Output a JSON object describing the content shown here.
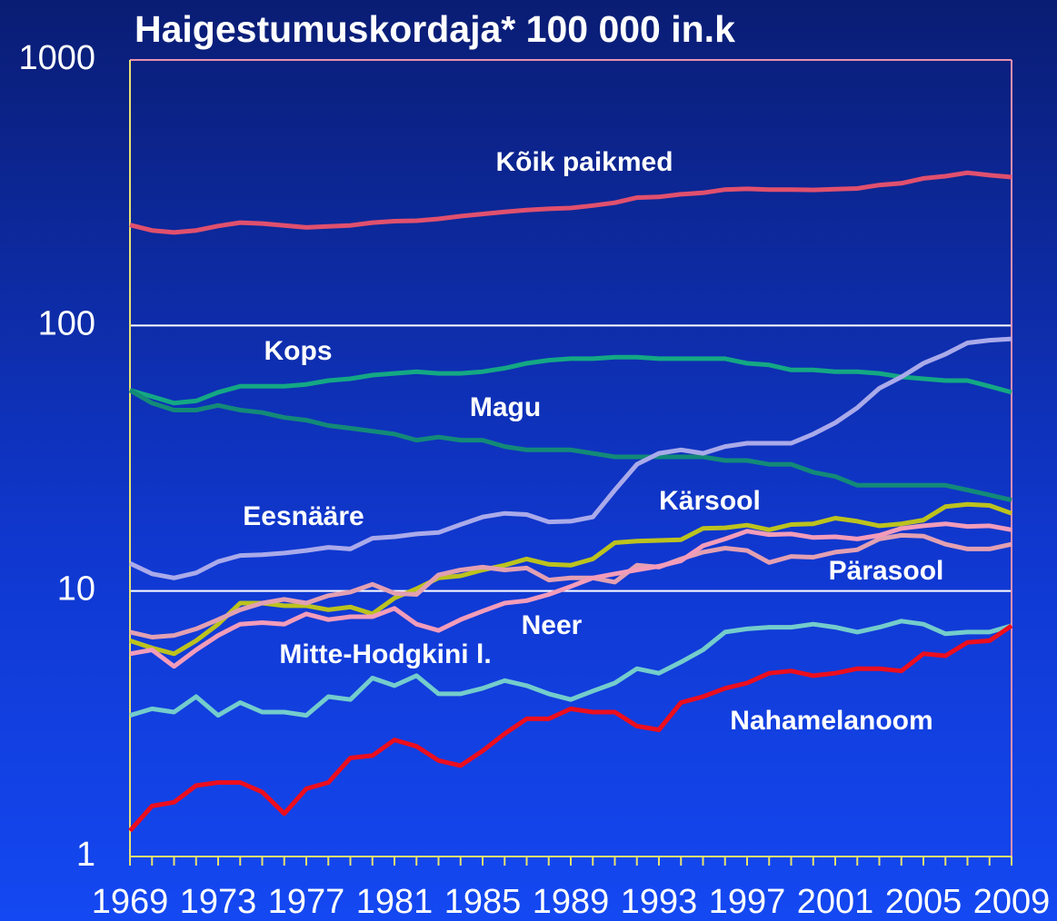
{
  "chart_data": {
    "type": "line",
    "title": "Haigestumuskordaja* 100 000 in.k",
    "log_scale": true,
    "grid": true,
    "x": [
      1969,
      1970,
      1971,
      1972,
      1973,
      1974,
      1975,
      1976,
      1977,
      1978,
      1979,
      1980,
      1981,
      1982,
      1983,
      1984,
      1985,
      1986,
      1987,
      1988,
      1989,
      1990,
      1991,
      1992,
      1993,
      1994,
      1995,
      1996,
      1997,
      1998,
      1999,
      2000,
      2001,
      2002,
      2003,
      2004,
      2005,
      2006,
      2007,
      2008,
      2009
    ],
    "xlim": [
      1969,
      2009
    ],
    "xticks": [
      1969,
      1973,
      1977,
      1981,
      1985,
      1989,
      1993,
      1997,
      2001,
      2005,
      2009
    ],
    "ylim": [
      1,
      1000
    ],
    "yticks": [
      1,
      10,
      100,
      1000
    ],
    "series": [
      {
        "name": "Kõik paikmed",
        "color": "#e0506e",
        "values": [
          239,
          228,
          224,
          228,
          237,
          244,
          242,
          238,
          234,
          236,
          238,
          244,
          247,
          248,
          252,
          258,
          263,
          268,
          272,
          275,
          277,
          283,
          290,
          303,
          305,
          312,
          316,
          325,
          327,
          325,
          325,
          324,
          326,
          328,
          338,
          343,
          358,
          365,
          376,
          368,
          362
        ]
      },
      {
        "name": "Kops",
        "color": "#14a884",
        "values": [
          57,
          54,
          51,
          52,
          56,
          59,
          59,
          59,
          60,
          62,
          63,
          65,
          66,
          67,
          66,
          66,
          67,
          69,
          72,
          74,
          75,
          75,
          76,
          76,
          75,
          75,
          75,
          75,
          72,
          71,
          68,
          68,
          67,
          67,
          66,
          64,
          63,
          62,
          62,
          59,
          56
        ]
      },
      {
        "name": "Magu",
        "color": "#138a78",
        "values": [
          57,
          51,
          48,
          48,
          50,
          48,
          47,
          45,
          44,
          42,
          41,
          40,
          39,
          37,
          38,
          37,
          37,
          35,
          34,
          34,
          34,
          33,
          32,
          32,
          32,
          32,
          32,
          31,
          31,
          30,
          30,
          28,
          27,
          25,
          25,
          25,
          25,
          25,
          24,
          23,
          22
        ]
      },
      {
        "name": "Eesnääre",
        "color": "#aaaaea",
        "values": [
          12.7,
          11.6,
          11.2,
          11.7,
          12.9,
          13.6,
          13.7,
          13.9,
          14.2,
          14.6,
          14.4,
          15.8,
          16.0,
          16.4,
          16.6,
          17.8,
          19.0,
          19.6,
          19.4,
          18.2,
          18.3,
          19.0,
          24,
          30,
          33,
          34,
          33,
          35,
          36,
          36,
          36,
          39,
          43,
          49,
          58,
          64,
          72,
          78,
          86,
          88,
          89
        ]
      },
      {
        "name": "Kärsool",
        "color": "#bcc21e",
        "values": [
          6.5,
          6.1,
          5.8,
          6.5,
          7.5,
          9.0,
          9.0,
          8.8,
          8.8,
          8.5,
          8.7,
          8.2,
          9.4,
          10.2,
          11.2,
          11.4,
          12.0,
          12.5,
          13.2,
          12.6,
          12.5,
          13.2,
          15.2,
          15.4,
          15.5,
          15.6,
          17.2,
          17.3,
          17.7,
          17.0,
          17.8,
          17.9,
          18.8,
          18.3,
          17.6,
          17.9,
          18.5,
          20.8,
          21.2,
          21.0,
          19.6
        ]
      },
      {
        "name": "Pärasool",
        "color": "#e2a0b2",
        "values": [
          7.0,
          6.7,
          6.8,
          7.2,
          7.8,
          8.5,
          9.0,
          9.3,
          9.0,
          9.6,
          9.9,
          10.6,
          9.8,
          9.7,
          11.5,
          12.0,
          12.3,
          12.0,
          12.2,
          11.0,
          11.2,
          11.2,
          10.8,
          12.5,
          12.3,
          13.2,
          14.0,
          14.5,
          14.2,
          12.8,
          13.5,
          13.4,
          14.0,
          14.3,
          15.7,
          16.2,
          16.1,
          15.0,
          14.4,
          14.4,
          15.0
        ]
      },
      {
        "name": "Neer",
        "color": "#f39cba",
        "values": [
          5.8,
          6.0,
          5.2,
          6.0,
          6.8,
          7.5,
          7.6,
          7.5,
          8.2,
          7.8,
          8.0,
          8.0,
          8.6,
          7.5,
          7.1,
          7.8,
          8.4,
          9.0,
          9.2,
          9.7,
          10.4,
          11.2,
          11.6,
          12.0,
          12.4,
          13.0,
          14.8,
          15.7,
          16.8,
          16.3,
          16.4,
          15.9,
          16.0,
          15.7,
          16.2,
          17.2,
          17.6,
          17.9,
          17.5,
          17.6,
          17.0
        ]
      },
      {
        "name": "Mitte-Hodgkini l.",
        "color": "#74cccc",
        "values": [
          3.4,
          3.6,
          3.5,
          4.0,
          3.4,
          3.8,
          3.5,
          3.5,
          3.4,
          4.0,
          3.9,
          4.7,
          4.4,
          4.8,
          4.1,
          4.1,
          4.3,
          4.6,
          4.4,
          4.1,
          3.9,
          4.2,
          4.5,
          5.1,
          4.9,
          5.4,
          6.0,
          7.0,
          7.2,
          7.3,
          7.3,
          7.5,
          7.3,
          7.0,
          7.3,
          7.7,
          7.5,
          6.9,
          7.0,
          7.0,
          7.4
        ]
      },
      {
        "name": "Nahamelanoom",
        "color": "#ec0e1e",
        "values": [
          1.25,
          1.55,
          1.6,
          1.85,
          1.9,
          1.9,
          1.75,
          1.45,
          1.8,
          1.9,
          2.35,
          2.4,
          2.75,
          2.6,
          2.3,
          2.2,
          2.5,
          2.9,
          3.3,
          3.3,
          3.6,
          3.5,
          3.5,
          3.1,
          3.0,
          3.8,
          4.0,
          4.3,
          4.5,
          4.9,
          5.0,
          4.8,
          4.9,
          5.1,
          5.1,
          5.0,
          5.8,
          5.7,
          6.4,
          6.5,
          7.4
        ]
      }
    ]
  }
}
